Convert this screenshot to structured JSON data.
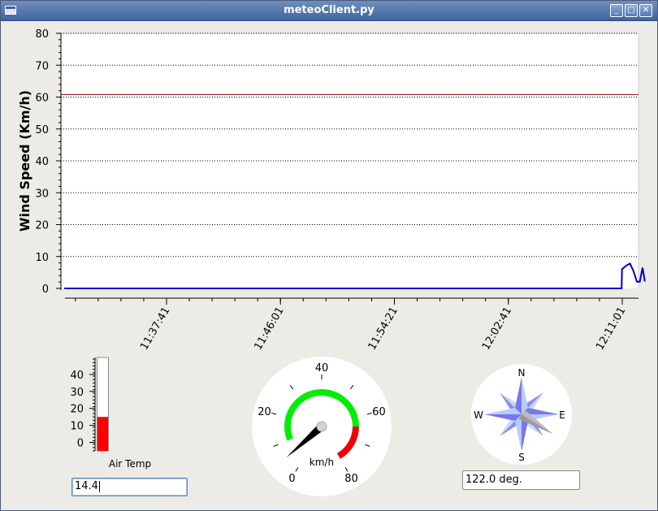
{
  "window": {
    "title": "meteoClient.py",
    "buttons": {
      "minimize": "_",
      "maximize": "□",
      "close": "✕"
    }
  },
  "plot": {
    "ylabel": "Wind Speed (Km/h)",
    "ylim": [
      0,
      80
    ],
    "yticks": [
      "0",
      "10",
      "20",
      "30",
      "40",
      "50",
      "60",
      "70",
      "80"
    ],
    "xticks": [
      "11:37:41",
      "11:46:01",
      "11:54:21",
      "12:02:41",
      "12:11:01"
    ]
  },
  "chart_data": {
    "type": "line",
    "title": "",
    "xlabel": "",
    "ylabel": "Wind Speed (Km/h)",
    "ylim": [
      0,
      80
    ],
    "grid": true,
    "threshold": {
      "value": 60.8,
      "color": "#8b0000"
    },
    "series": [
      {
        "color": "#0000cc",
        "x": [
          "11:31:12",
          "12:10:58",
          "12:11:00",
          "12:11:20",
          "12:11:35",
          "12:11:50",
          "12:12:05",
          "12:12:18",
          "12:12:30",
          "12:12:40"
        ],
        "values": [
          0,
          0,
          6.0,
          7.2,
          7.8,
          5.5,
          2.1,
          2.1,
          6.5,
          2.2
        ]
      }
    ]
  },
  "thermometer": {
    "label": "Air Temp",
    "ticks": [
      "40",
      "30",
      "20",
      "10",
      "0"
    ],
    "range": [
      -5,
      50
    ],
    "value": 15,
    "fill_color": "#ff0000",
    "input_value": "14.4"
  },
  "gauge": {
    "unit": "km/h",
    "labels": [
      "0",
      "20",
      "40",
      "60",
      "80"
    ],
    "range": [
      0,
      80
    ],
    "needle_value": 5,
    "green_range": [
      10,
      64
    ],
    "red_range": [
      64,
      80
    ],
    "green_color": "#00ee00",
    "red_color": "#ee0000"
  },
  "compass": {
    "labels": {
      "N": "N",
      "E": "E",
      "S": "S",
      "W": "W"
    },
    "direction_deg": 122.0,
    "input_value": "122.0 deg."
  }
}
